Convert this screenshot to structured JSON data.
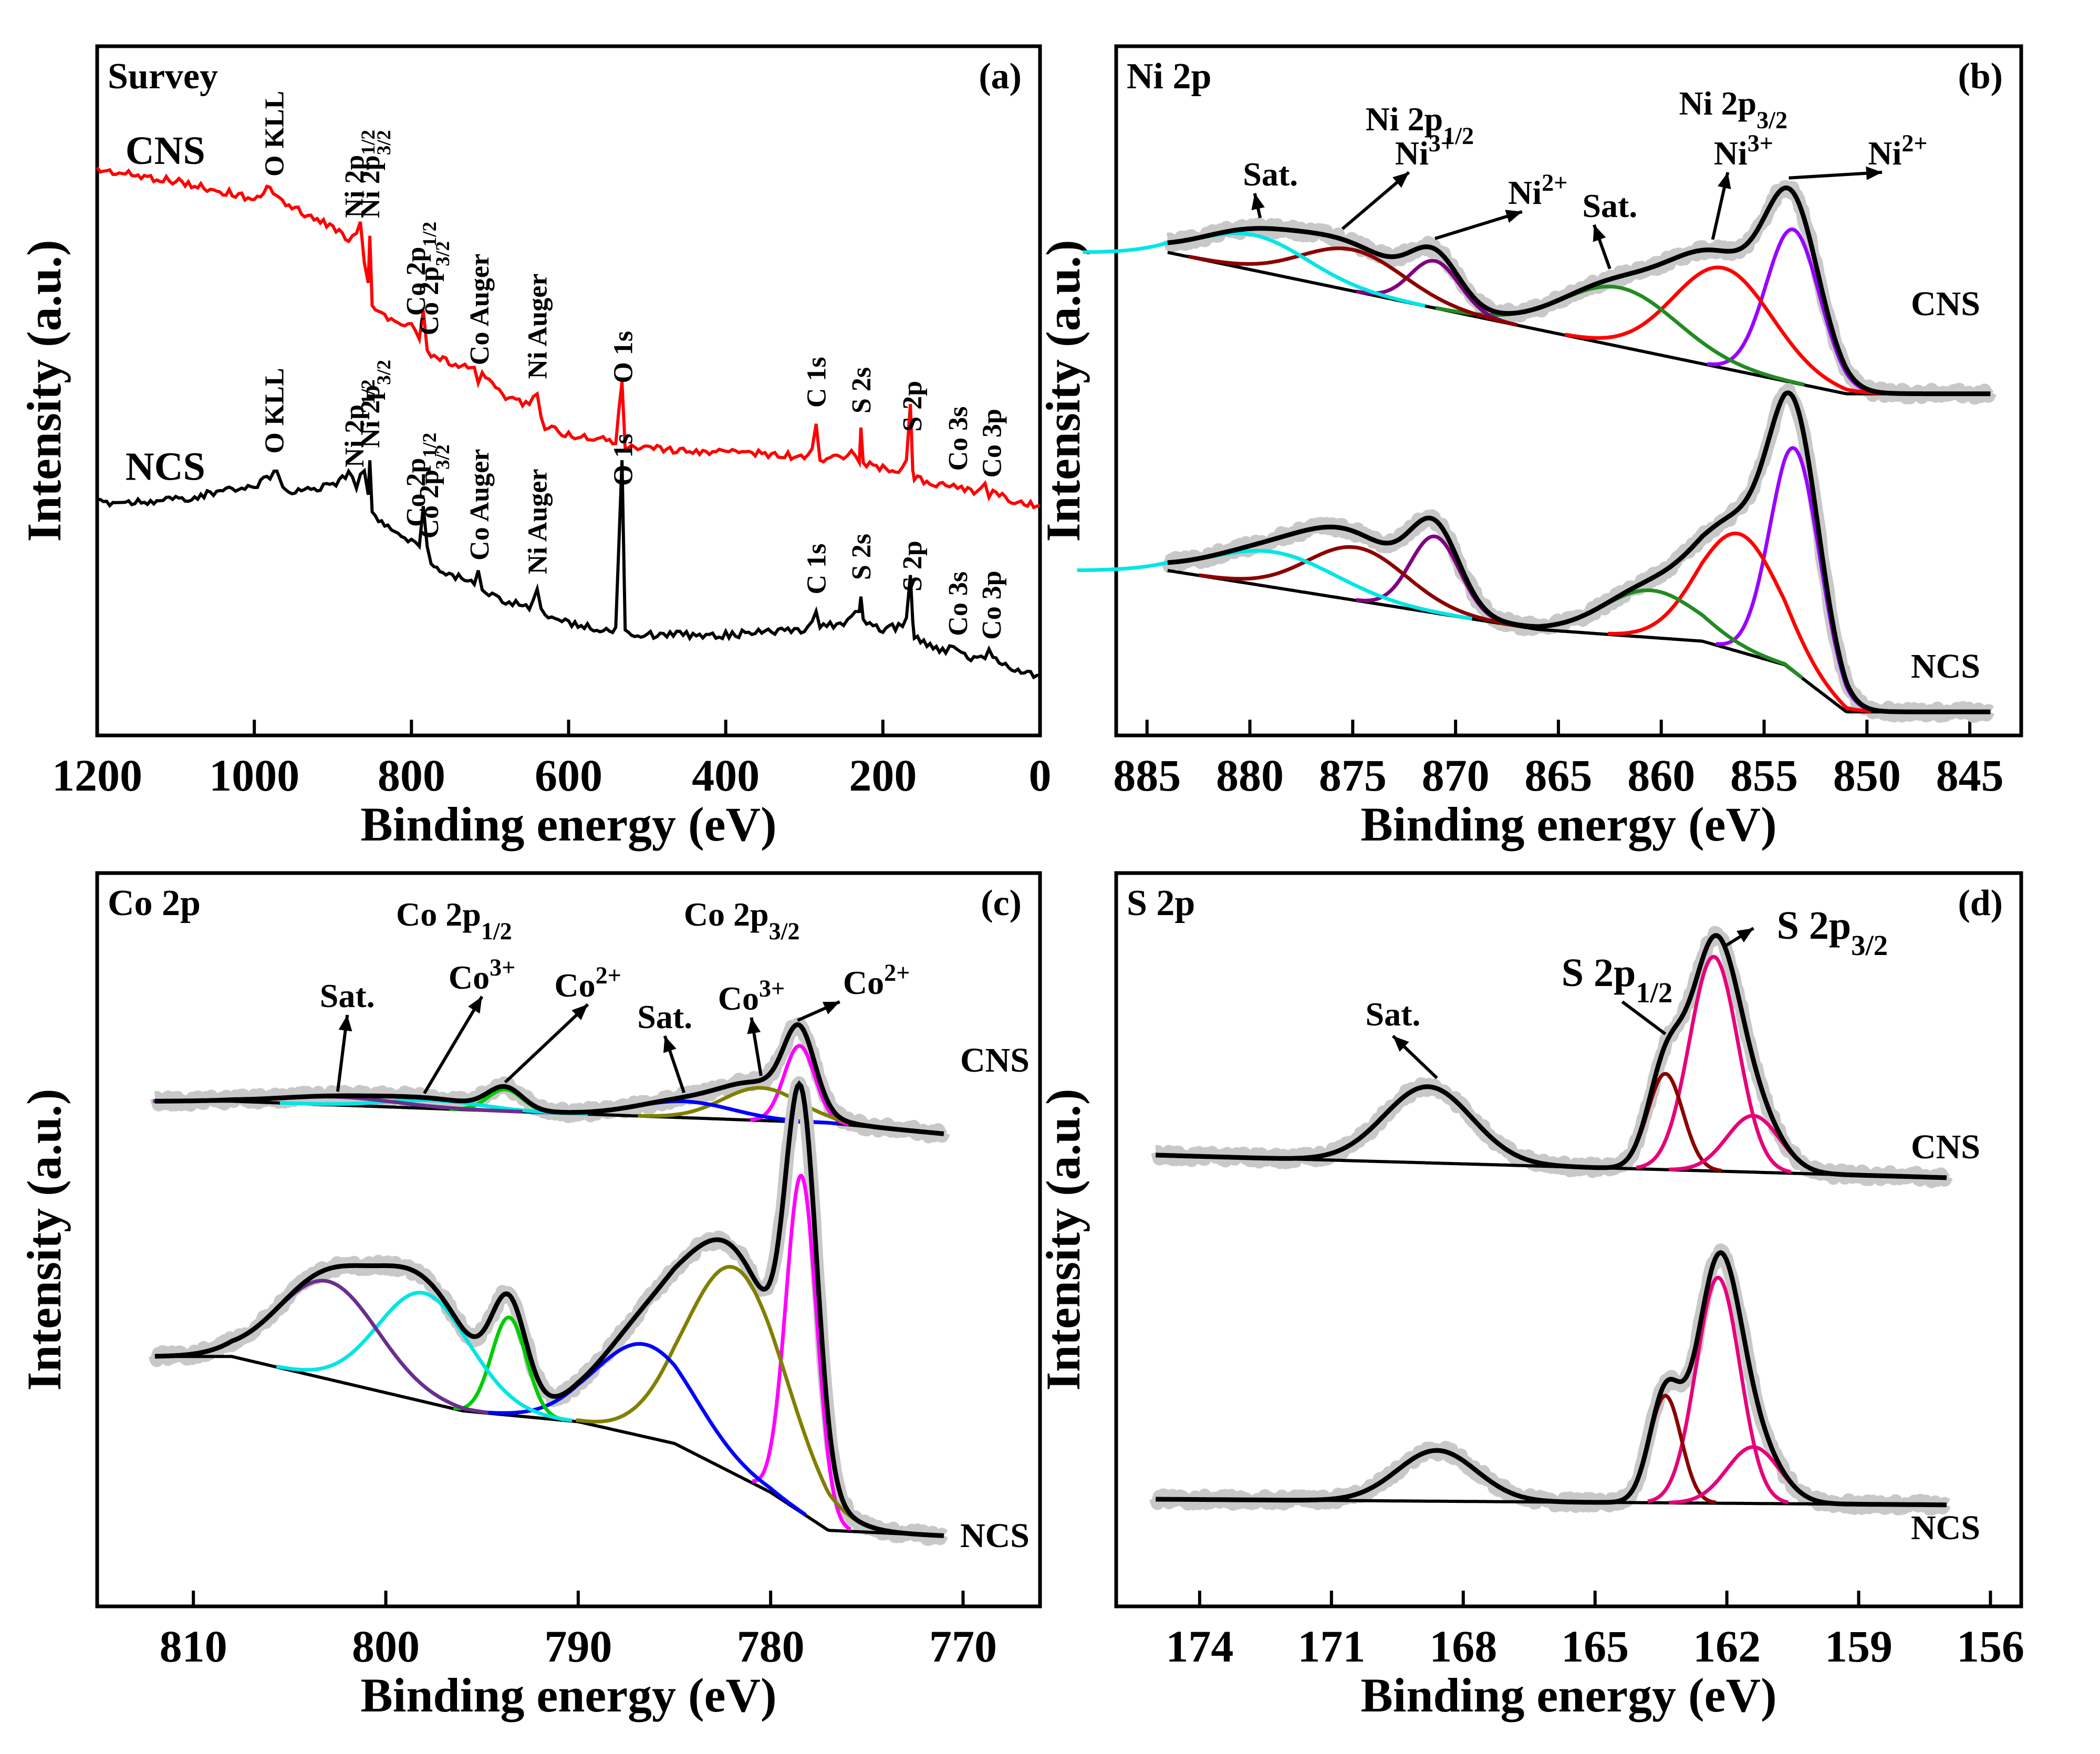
{
  "chart_data": [
    {
      "id": "a",
      "type": "line",
      "title": "Survey",
      "panel_label": "(a)",
      "xlabel": "Binding energy (eV)",
      "ylabel": "Intensity (a.u.)",
      "xlim": [
        1200,
        0
      ],
      "xticks": [
        1200,
        1000,
        800,
        600,
        400,
        200,
        0
      ],
      "series": [
        {
          "name": "CNS",
          "color": "#ff0000",
          "x": [
            1200,
            1100,
            1000,
            980,
            960,
            900,
            880,
            870,
            865,
            860,
            855,
            853,
            850,
            830,
            800,
            790,
            785,
            780,
            775,
            760,
            720,
            715,
            710,
            680,
            650,
            640,
            635,
            630,
            600,
            560,
            540,
            532,
            528,
            500,
            450,
            400,
            350,
            300,
            290,
            285,
            280,
            250,
            240,
            230,
            228,
            225,
            200,
            180,
            170,
            165,
            162,
            160,
            140,
            120,
            110,
            100,
            80,
            70,
            65,
            60,
            40,
            20,
            0
          ],
          "y": [
            1.62,
            1.58,
            1.52,
            1.56,
            1.5,
            1.42,
            1.38,
            1.41,
            1.45,
            1.3,
            1.22,
            1.4,
            1.15,
            1.1,
            1.08,
            1.04,
            1.14,
            1.0,
            0.98,
            0.96,
            0.92,
            0.88,
            0.92,
            0.83,
            0.8,
            0.84,
            0.77,
            0.72,
            0.7,
            0.68,
            0.67,
            0.88,
            0.66,
            0.65,
            0.64,
            0.64,
            0.63,
            0.62,
            0.64,
            0.74,
            0.61,
            0.62,
            0.64,
            0.6,
            0.72,
            0.6,
            0.58,
            0.57,
            0.6,
            0.81,
            0.58,
            0.55,
            0.53,
            0.52,
            0.53,
            0.51,
            0.5,
            0.52,
            0.49,
            0.5,
            0.47,
            0.46,
            0.45
          ]
        },
        {
          "name": "NCS",
          "color": "#000000",
          "x": [
            1200,
            1100,
            1000,
            980,
            975,
            960,
            900,
            880,
            870,
            860,
            855,
            853,
            850,
            830,
            800,
            790,
            785,
            780,
            775,
            760,
            720,
            715,
            710,
            680,
            650,
            640,
            635,
            630,
            600,
            560,
            540,
            532,
            528,
            500,
            450,
            400,
            350,
            300,
            290,
            285,
            280,
            250,
            240,
            230,
            228,
            225,
            200,
            180,
            170,
            165,
            162,
            160,
            140,
            120,
            110,
            100,
            80,
            70,
            65,
            60,
            40,
            20,
            0
          ],
          "y": [
            0.46,
            0.47,
            0.52,
            0.55,
            0.58,
            0.5,
            0.52,
            0.56,
            0.52,
            0.58,
            0.48,
            0.6,
            0.42,
            0.38,
            0.33,
            0.32,
            0.45,
            0.3,
            0.26,
            0.22,
            0.18,
            0.22,
            0.16,
            0.12,
            0.1,
            0.16,
            0.08,
            0.06,
            0.04,
            0.02,
            0.02,
            0.62,
            0.01,
            0.0,
            0.0,
            0.0,
            0.01,
            0.02,
            0.04,
            0.09,
            0.03,
            0.04,
            0.06,
            0.08,
            0.14,
            0.05,
            0.02,
            0.03,
            0.05,
            0.2,
            0.05,
            0.0,
            -0.04,
            -0.06,
            -0.04,
            -0.07,
            -0.09,
            -0.08,
            -0.05,
            -0.08,
            -0.11,
            -0.13,
            -0.14
          ]
        }
      ],
      "annotations": [
        {
          "text": "O KLL",
          "x": 975,
          "series": "CNS"
        },
        {
          "text": "Ni 2p",
          "sub": "1/2",
          "x": 873,
          "series": "CNS"
        },
        {
          "text": "Ni 2p",
          "sub": "3/2",
          "x": 853,
          "series": "CNS"
        },
        {
          "text": "Co 2p",
          "sub": "1/2",
          "x": 795,
          "series": "CNS"
        },
        {
          "text": "Co 2p",
          "sub": "3/2",
          "x": 778,
          "series": "CNS"
        },
        {
          "text": "Co Auger",
          "x": 714,
          "series": "CNS"
        },
        {
          "text": "Ni Auger",
          "x": 640,
          "series": "CNS"
        },
        {
          "text": "O 1s",
          "x": 531,
          "series": "CNS"
        },
        {
          "text": "C 1s",
          "x": 285,
          "series": "CNS"
        },
        {
          "text": "S 2s",
          "x": 228,
          "series": "CNS"
        },
        {
          "text": "S 2p",
          "x": 163,
          "series": "CNS"
        },
        {
          "text": "Co 3s",
          "x": 105,
          "series": "CNS"
        },
        {
          "text": "Co 3p",
          "x": 62,
          "series": "CNS"
        },
        {
          "text": "O KLL",
          "x": 975,
          "series": "NCS"
        },
        {
          "text": "Ni 2p",
          "sub": "1/2",
          "x": 873,
          "series": "NCS"
        },
        {
          "text": "Ni 2p",
          "sub": "3/2",
          "x": 853,
          "series": "NCS"
        },
        {
          "text": "Co 2p",
          "sub": "1/2",
          "x": 795,
          "series": "NCS"
        },
        {
          "text": "Co 2p",
          "sub": "3/2",
          "x": 778,
          "series": "NCS"
        },
        {
          "text": "Co Auger",
          "x": 714,
          "series": "NCS"
        },
        {
          "text": "Ni Auger",
          "x": 640,
          "series": "NCS"
        },
        {
          "text": "O 1s",
          "x": 531,
          "series": "NCS"
        },
        {
          "text": "C 1s",
          "x": 285,
          "series": "NCS"
        },
        {
          "text": "S 2s",
          "x": 228,
          "series": "NCS"
        },
        {
          "text": "S 2p",
          "x": 163,
          "series": "NCS"
        },
        {
          "text": "Co 3s",
          "x": 105,
          "series": "NCS"
        },
        {
          "text": "Co 3p",
          "x": 62,
          "series": "NCS"
        }
      ]
    },
    {
      "id": "b",
      "type": "line",
      "title": "Ni 2p",
      "panel_label": "(b)",
      "xlabel": "Binding energy (eV)",
      "ylabel": "Intensity (a.u.)",
      "xlim": [
        886.5,
        842.5
      ],
      "xticks": [
        885,
        880,
        875,
        870,
        865,
        860,
        855,
        850,
        845
      ],
      "samples": [
        {
          "name": "CNS",
          "xrange": [
            884,
            844
          ],
          "baseline": [
            [
              884,
              0.8
            ],
            [
              851,
              0.56
            ],
            [
              844,
              0.56
            ]
          ],
          "peaks": [
            {
              "label": "Ni2+ (2p3/2)",
              "center": 853.6,
              "height": 0.26,
              "width": 1.3,
              "color": "#9900ff"
            },
            {
              "label": "Ni3+ (2p3/2)",
              "center": 857.0,
              "height": 0.17,
              "width": 2.4,
              "color": "#ff0000"
            },
            {
              "label": "Sat. (2p3/2)",
              "center": 862.0,
              "height": 0.1,
              "width": 2.8,
              "color": "#228b22"
            },
            {
              "label": "Ni2+ (2p1/2)",
              "center": 871.0,
              "height": 0.08,
              "width": 1.2,
              "color": "#800080"
            },
            {
              "label": "Ni3+ (2p1/2)",
              "center": 875.0,
              "height": 0.07,
              "width": 2.5,
              "color": "#8b0000"
            },
            {
              "label": "Sat. (2p1/2)",
              "center": 879.8,
              "height": 0.06,
              "width": 2.6,
              "color": "#00e5e5"
            }
          ]
        },
        {
          "name": "NCS",
          "xrange": [
            884,
            844
          ],
          "baseline": [
            [
              884,
              0.26
            ],
            [
              866,
              0.16
            ],
            [
              858,
              0.14
            ],
            [
              854,
              0.1
            ],
            [
              851,
              0.02
            ],
            [
              844,
              0.02
            ]
          ],
          "peaks": [
            {
              "label": "Ni2+ (2p3/2)",
              "center": 853.5,
              "height": 0.38,
              "width": 1.2,
              "color": "#9900ff"
            },
            {
              "label": "Ni3+ (2p3/2)",
              "center": 856.2,
              "height": 0.2,
              "width": 2.0,
              "color": "#ff0000"
            },
            {
              "label": "Sat. (2p3/2)",
              "center": 860.5,
              "height": 0.08,
              "width": 2.3,
              "color": "#228b22"
            },
            {
              "label": "Ni2+ (2p1/2)",
              "center": 871.0,
              "height": 0.13,
              "width": 1.2,
              "color": "#800080"
            },
            {
              "label": "Ni3+ (2p1/2)",
              "center": 874.8,
              "height": 0.09,
              "width": 2.4,
              "color": "#8b0000"
            },
            {
              "label": "Sat. (2p1/2)",
              "center": 878.8,
              "height": 0.06,
              "width": 3.0,
              "color": "#00e5e5"
            }
          ]
        }
      ],
      "annotations": {
        "group_left": {
          "text": "Ni 2p",
          "sub": "1/2"
        },
        "group_right": {
          "text": "Ni 2p",
          "sub": "3/2"
        },
        "peak_labels": [
          {
            "text": "Sat.",
            "sup": ""
          },
          {
            "text": "Ni",
            "sup": "3+"
          },
          {
            "text": "Ni",
            "sup": "2+"
          },
          {
            "text": "Sat.",
            "sup": ""
          },
          {
            "text": "Ni",
            "sup": "3+"
          },
          {
            "text": "Ni",
            "sup": "2+"
          }
        ]
      }
    },
    {
      "id": "c",
      "type": "line",
      "title": "Co 2p",
      "panel_label": "(c)",
      "xlabel": "Binding energy (eV)",
      "ylabel": "Intensity (a.u.)",
      "xlim": [
        815,
        766
      ],
      "xticks": [
        810,
        800,
        790,
        780,
        770
      ],
      "samples": [
        {
          "name": "CNS",
          "xrange": [
            812,
            771
          ],
          "baseline": [
            [
              808,
              0.83
            ],
            [
              777,
              0.79
            ],
            [
              771,
              0.77
            ]
          ],
          "pad_left": 0.82,
          "peaks": [
            {
              "label": "Co2+ (2p3/2)",
              "center": 778.5,
              "height": 0.14,
              "width": 0.8,
              "color": "#ff00ff"
            },
            {
              "label": "Co3+ (2p3/2)",
              "center": 780.5,
              "height": 0.06,
              "width": 2.0,
              "color": "#808000"
            },
            {
              "label": "Sat. (2p3/2)",
              "center": 784.5,
              "height": 0.03,
              "width": 2.5,
              "color": "#0000ff"
            },
            {
              "label": "Co2+ (2p1/2)",
              "center": 793.8,
              "height": 0.04,
              "width": 0.9,
              "color": "#00cc00"
            },
            {
              "label": "Co3+ (2p1/2)",
              "center": 797.5,
              "height": 0.015,
              "width": 2.5,
              "color": "#00e5e5"
            },
            {
              "label": "Sat. (2p1/2)",
              "center": 802.5,
              "height": 0.015,
              "width": 3.0,
              "color": "#6b2e8c"
            }
          ]
        },
        {
          "name": "NCS",
          "xrange": [
            812,
            771
          ],
          "baseline": [
            [
              808,
              0.36
            ],
            [
              796,
              0.26
            ],
            [
              790,
              0.24
            ],
            [
              785,
              0.2
            ],
            [
              780,
              0.11
            ],
            [
              777,
              0.04
            ],
            [
              771,
              0.03
            ]
          ],
          "pad_left": 0.34,
          "peaks": [
            {
              "label": "Co2+ (2p3/2)",
              "center": 778.4,
              "height": 0.62,
              "width": 0.8,
              "color": "#ff00ff"
            },
            {
              "label": "Co3+ (2p3/2)",
              "center": 781.8,
              "height": 0.38,
              "width": 2.6,
              "color": "#808000"
            },
            {
              "label": "Sat. (2p3/2)",
              "center": 786.5,
              "height": 0.17,
              "width": 2.6,
              "color": "#0000ff"
            },
            {
              "label": "Co2+ (2p1/2)",
              "center": 793.6,
              "height": 0.18,
              "width": 0.9,
              "color": "#00cc00"
            },
            {
              "label": "Co3+ (2p1/2)",
              "center": 798.0,
              "height": 0.2,
              "width": 2.4,
              "color": "#00e5e5"
            },
            {
              "label": "Sat. (2p1/2)",
              "center": 803.0,
              "height": 0.18,
              "width": 2.6,
              "color": "#6b2e8c"
            }
          ]
        }
      ],
      "annotations": {
        "group_left": {
          "text": "Co 2p",
          "sub": "1/2"
        },
        "group_right": {
          "text": "Co 2p",
          "sub": "3/2"
        },
        "peak_labels": [
          {
            "text": "Sat.",
            "sup": ""
          },
          {
            "text": "Co",
            "sup": "3+"
          },
          {
            "text": "Co",
            "sup": "2+"
          },
          {
            "text": "Sat.",
            "sup": ""
          },
          {
            "text": "Co",
            "sup": "3+"
          },
          {
            "text": "Co",
            "sup": "2+"
          }
        ]
      }
    },
    {
      "id": "d",
      "type": "line",
      "title": "S 2p",
      "panel_label": "(d)",
      "xlabel": "Binding energy (eV)",
      "ylabel": "Intensity (a.u.)",
      "xlim": [
        175.9,
        155.3
      ],
      "xticks": [
        174,
        171,
        168,
        165,
        162,
        159,
        156
      ],
      "samples": [
        {
          "name": "CNS",
          "xrange": [
            175,
            157
          ],
          "baseline": [
            [
              175,
              0.68
            ],
            [
              157,
              0.64
            ]
          ],
          "peaks": [
            {
              "label": "S 2p3/2 (a)",
              "center": 162.3,
              "height": 0.38,
              "width": 0.55,
              "color": "#e6007a"
            },
            {
              "label": "S 2p1/2",
              "center": 163.4,
              "height": 0.17,
              "width": 0.4,
              "color": "#8b0000"
            },
            {
              "label": "S 2p3/2 (b)",
              "center": 161.4,
              "height": 0.1,
              "width": 0.6,
              "color": "#e6007a"
            },
            {
              "label": "Sat.",
              "center": 168.8,
              "height": 0.135,
              "width": 1.0,
              "color": "#2e8b8b"
            }
          ]
        },
        {
          "name": "NCS",
          "xrange": [
            175,
            157
          ],
          "baseline": [
            [
              175,
              0.07
            ],
            [
              157,
              0.06
            ]
          ],
          "peaks": [
            {
              "label": "S 2p3/2 (a)",
              "center": 162.2,
              "height": 0.4,
              "width": 0.5,
              "color": "#e6007a"
            },
            {
              "label": "S 2p1/2",
              "center": 163.4,
              "height": 0.19,
              "width": 0.36,
              "color": "#8b0000"
            },
            {
              "label": "S 2p3/2 (b)",
              "center": 161.4,
              "height": 0.1,
              "width": 0.6,
              "color": "#e6007a"
            },
            {
              "label": "Sat.",
              "center": 168.6,
              "height": 0.09,
              "width": 0.9,
              "color": "#2e8b8b"
            }
          ]
        }
      ],
      "annotations": {
        "sat": {
          "text": "Sat."
        },
        "p12": {
          "text": "S 2p",
          "sub": "1/2"
        },
        "p32": {
          "text": "S 2p",
          "sub": "3/2"
        }
      }
    }
  ]
}
